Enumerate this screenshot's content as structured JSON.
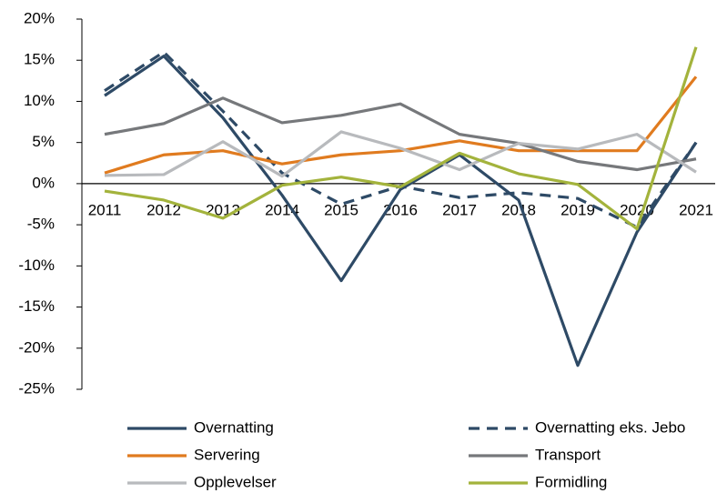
{
  "chart_data": {
    "type": "line",
    "categories": [
      "2011",
      "2012",
      "2013",
      "2014",
      "2015",
      "2016",
      "2017",
      "2018",
      "2019",
      "2020",
      "2021"
    ],
    "series": [
      {
        "name": "Overnatting",
        "color": "#2e4a66",
        "values": [
          10.7,
          15.5,
          8.0,
          -1.4,
          -11.8,
          -0.7,
          3.5,
          -2.0,
          -22.1,
          -5.9,
          5.0
        ]
      },
      {
        "name": "Overnatting eks. Jebo",
        "color": "#2e4a66",
        "dashed": true,
        "values": [
          11.3,
          16.0,
          8.8,
          1.3,
          -2.5,
          -0.3,
          -1.7,
          -1.1,
          -1.8,
          -5.3,
          5.0
        ]
      },
      {
        "name": "Servering",
        "color": "#e07b1f",
        "values": [
          1.3,
          3.5,
          4.0,
          2.4,
          3.5,
          4.0,
          5.2,
          4.0,
          4.0,
          4.0,
          13.0
        ]
      },
      {
        "name": "Transport",
        "color": "#76787b",
        "values": [
          6.0,
          7.3,
          10.4,
          7.4,
          8.3,
          9.7,
          6.0,
          4.9,
          2.7,
          1.7,
          3.0
        ]
      },
      {
        "name": "Opplevelser",
        "color": "#b8babd",
        "values": [
          1.0,
          1.1,
          5.1,
          0.9,
          6.3,
          4.3,
          1.7,
          4.9,
          4.2,
          6.0,
          1.4
        ]
      },
      {
        "name": "Formidling",
        "color": "#a3b33c",
        "values": [
          -0.9,
          -2.0,
          -4.2,
          -0.2,
          0.8,
          -0.4,
          3.7,
          1.2,
          -0.1,
          -5.5,
          16.6
        ]
      }
    ],
    "ylim": [
      -25,
      20
    ],
    "yticks": [
      {
        "value": -25,
        "label": "-25%"
      },
      {
        "value": -20,
        "label": "-20%"
      },
      {
        "value": -15,
        "label": "-15%"
      },
      {
        "value": -10,
        "label": "-10%"
      },
      {
        "value": -5,
        "label": "-5%"
      },
      {
        "value": 0,
        "label": "0%"
      },
      {
        "value": 5,
        "label": "5%"
      },
      {
        "value": 10,
        "label": "10%"
      },
      {
        "value": 15,
        "label": "15%"
      },
      {
        "value": 20,
        "label": "20%"
      }
    ]
  }
}
